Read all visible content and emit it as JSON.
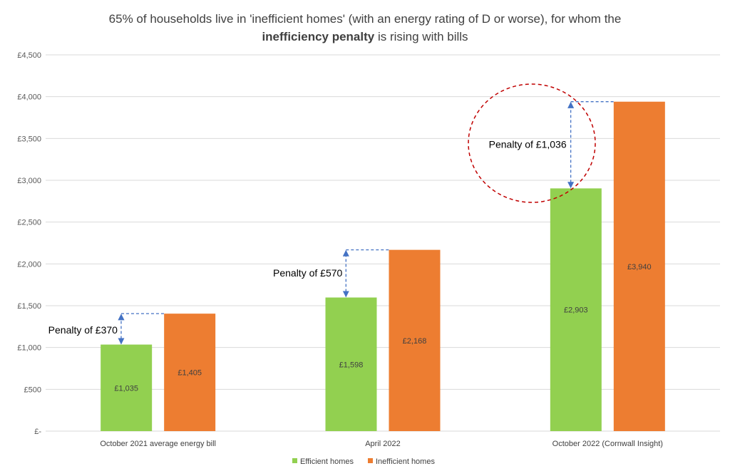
{
  "title": {
    "line1": "65% of households live in 'inefficient homes' (with an energy rating of D or worse), for whom the",
    "line2_bold": "inefficiency penalty",
    "line2_rest": " is rising with bills"
  },
  "colors": {
    "efficient": "#92d050",
    "inefficient": "#ed7d31",
    "grid": "#d9d9d9",
    "arrow": "#4472c4",
    "circle": "#c00000"
  },
  "chart_data": {
    "type": "bar",
    "categories": [
      "October 2021 average energy bill",
      "April 2022",
      "October 2022 (Cornwall Insight)"
    ],
    "series": [
      {
        "name": "Efficient homes",
        "values": [
          1035,
          1598,
          2903
        ],
        "labels": [
          "£1,035",
          "£1,598",
          "£2,903"
        ]
      },
      {
        "name": "Inefficient homes",
        "values": [
          1405,
          2168,
          3940
        ],
        "labels": [
          "£1,405",
          "£2,168",
          "£3,940"
        ]
      }
    ],
    "ylim": [
      0,
      4500
    ],
    "yticks": [
      0,
      500,
      1000,
      1500,
      2000,
      2500,
      3000,
      3500,
      4000,
      4500
    ],
    "ytick_labels": [
      "£-",
      "£500",
      "£1,000",
      "£1,500",
      "£2,000",
      "£2,500",
      "£3,000",
      "£3,500",
      "£4,000",
      "£4,500"
    ],
    "grid": true,
    "legend": "bottom-center",
    "annotations": [
      "Penalty of £370",
      "Penalty of £570",
      "Penalty of £1,036"
    ],
    "highlighted_category": "October 2022 (Cornwall Insight)"
  }
}
